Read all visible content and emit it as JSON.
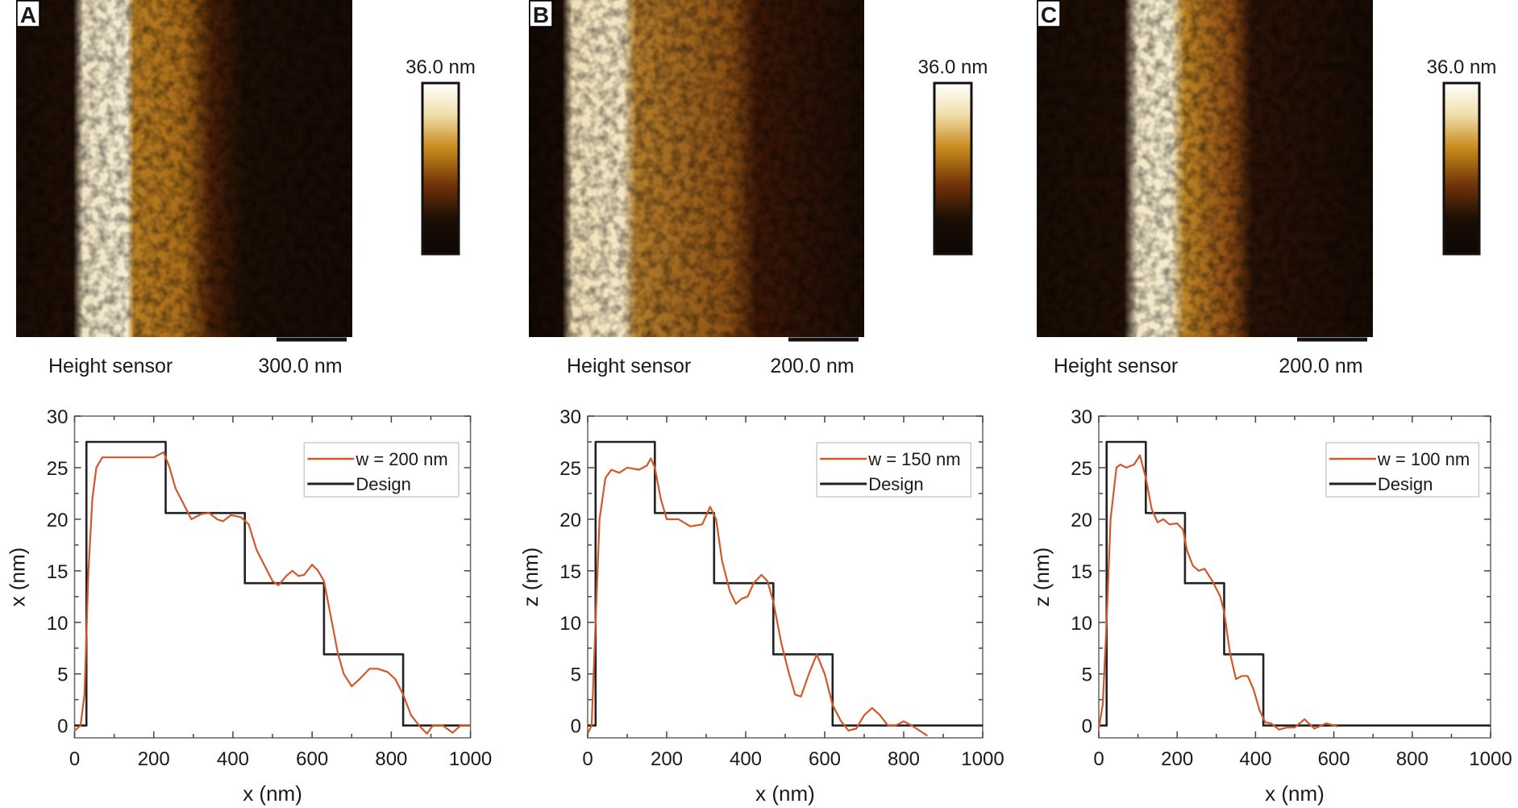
{
  "panels": [
    {
      "letter": "A",
      "image_label": "Height sensor",
      "scale_bar_label": "300.0 nm",
      "colorbar_max_label": "36.0 nm"
    },
    {
      "letter": "B",
      "image_label": "Height sensor",
      "scale_bar_label": "200.0 nm",
      "colorbar_max_label": "36.0 nm"
    },
    {
      "letter": "C",
      "image_label": "Height sensor",
      "scale_bar_label": "200.0 nm",
      "colorbar_max_label": "36.0 nm"
    }
  ],
  "colors": {
    "measured": "#d2582a",
    "design": "#222222",
    "afm_bright": "#fbf3df",
    "afm_gold": "#c98a1c",
    "afm_dark": "#1a0d05"
  },
  "chart_data": [
    {
      "type": "line",
      "xlabel": "x (nm)",
      "ylabel": "x (nm)",
      "xlim": [
        0,
        1000
      ],
      "ylim": [
        -1.2,
        30
      ],
      "xticks": [
        "0",
        "200",
        "400",
        "600",
        "800",
        "1000"
      ],
      "yticks": [
        "0",
        "5",
        "10",
        "15",
        "20",
        "25",
        "30"
      ],
      "grid": false,
      "legend": "top-right",
      "series": [
        {
          "name": "w = 200 nm",
          "color": "#d2582a",
          "points": [
            [
              0,
              -0.5
            ],
            [
              15,
              0
            ],
            [
              25,
              3
            ],
            [
              35,
              15
            ],
            [
              45,
              22
            ],
            [
              55,
              25
            ],
            [
              70,
              26
            ],
            [
              100,
              26
            ],
            [
              150,
              26
            ],
            [
              200,
              26
            ],
            [
              225,
              26.5
            ],
            [
              240,
              25
            ],
            [
              255,
              23
            ],
            [
              275,
              21.5
            ],
            [
              295,
              20
            ],
            [
              320,
              20.5
            ],
            [
              340,
              20.6
            ],
            [
              360,
              20
            ],
            [
              375,
              19.8
            ],
            [
              395,
              20.4
            ],
            [
              420,
              20.2
            ],
            [
              440,
              19.5
            ],
            [
              460,
              17
            ],
            [
              480,
              15.5
            ],
            [
              500,
              14
            ],
            [
              515,
              13.6
            ],
            [
              535,
              14.5
            ],
            [
              550,
              15
            ],
            [
              565,
              14.5
            ],
            [
              580,
              14.6
            ],
            [
              600,
              15.6
            ],
            [
              615,
              15
            ],
            [
              630,
              14
            ],
            [
              645,
              11
            ],
            [
              665,
              7
            ],
            [
              680,
              5
            ],
            [
              700,
              3.8
            ],
            [
              720,
              4.5
            ],
            [
              745,
              5.5
            ],
            [
              765,
              5.5
            ],
            [
              790,
              5.2
            ],
            [
              810,
              4.5
            ],
            [
              830,
              3
            ],
            [
              850,
              1
            ],
            [
              870,
              0
            ],
            [
              890,
              -0.8
            ],
            [
              905,
              0
            ],
            [
              930,
              0
            ],
            [
              955,
              -0.7
            ],
            [
              975,
              0
            ],
            [
              1000,
              0
            ]
          ]
        },
        {
          "name": "Design",
          "color": "#222222",
          "points": [
            [
              0,
              0
            ],
            [
              30,
              0
            ],
            [
              30,
              27.5
            ],
            [
              230,
              27.5
            ],
            [
              230,
              20.6
            ],
            [
              430,
              20.6
            ],
            [
              430,
              13.8
            ],
            [
              630,
              13.8
            ],
            [
              630,
              6.9
            ],
            [
              830,
              6.9
            ],
            [
              830,
              0
            ],
            [
              1000,
              0
            ]
          ]
        }
      ]
    },
    {
      "type": "line",
      "xlabel": "x (nm)",
      "ylabel": "z (nm)",
      "xlim": [
        0,
        1000
      ],
      "ylim": [
        -1.2,
        30
      ],
      "xticks": [
        "0",
        "200",
        "400",
        "600",
        "800",
        "1000"
      ],
      "yticks": [
        "0",
        "5",
        "10",
        "15",
        "20",
        "25",
        "30"
      ],
      "grid": false,
      "legend": "top-right",
      "series": [
        {
          "name": "w = 150 nm",
          "color": "#d2582a",
          "points": [
            [
              0,
              -0.8
            ],
            [
              10,
              0
            ],
            [
              20,
              10
            ],
            [
              30,
              20
            ],
            [
              45,
              24
            ],
            [
              60,
              24.8
            ],
            [
              80,
              24.5
            ],
            [
              100,
              25
            ],
            [
              130,
              24.8
            ],
            [
              150,
              25.2
            ],
            [
              160,
              25.9
            ],
            [
              170,
              25
            ],
            [
              185,
              22
            ],
            [
              200,
              20
            ],
            [
              230,
              20
            ],
            [
              260,
              19.3
            ],
            [
              290,
              19.5
            ],
            [
              310,
              21.2
            ],
            [
              325,
              20
            ],
            [
              340,
              16
            ],
            [
              360,
              13
            ],
            [
              375,
              11.8
            ],
            [
              390,
              12.3
            ],
            [
              405,
              12.5
            ],
            [
              420,
              13.8
            ],
            [
              440,
              14.6
            ],
            [
              455,
              14
            ],
            [
              470,
              12
            ],
            [
              490,
              8
            ],
            [
              510,
              5
            ],
            [
              525,
              3
            ],
            [
              540,
              2.8
            ],
            [
              560,
              5
            ],
            [
              580,
              6.9
            ],
            [
              600,
              5
            ],
            [
              620,
              2
            ],
            [
              640,
              0.5
            ],
            [
              660,
              -0.5
            ],
            [
              680,
              -0.3
            ],
            [
              700,
              1
            ],
            [
              720,
              1.7
            ],
            [
              740,
              1
            ],
            [
              760,
              0
            ],
            [
              780,
              0
            ],
            [
              800,
              0.4
            ],
            [
              820,
              0
            ],
            [
              840,
              -0.5
            ],
            [
              860,
              -1
            ]
          ]
        },
        {
          "name": "Design",
          "color": "#222222",
          "points": [
            [
              0,
              0
            ],
            [
              20,
              0
            ],
            [
              20,
              27.5
            ],
            [
              170,
              27.5
            ],
            [
              170,
              20.6
            ],
            [
              320,
              20.6
            ],
            [
              320,
              13.8
            ],
            [
              470,
              13.8
            ],
            [
              470,
              6.9
            ],
            [
              620,
              6.9
            ],
            [
              620,
              0
            ],
            [
              1000,
              0
            ]
          ]
        }
      ]
    },
    {
      "type": "line",
      "xlabel": "x (nm)",
      "ylabel": "z (nm)",
      "xlim": [
        0,
        1000
      ],
      "ylim": [
        -1.2,
        30
      ],
      "xticks": [
        "0",
        "200",
        "400",
        "600",
        "800",
        "1000"
      ],
      "yticks": [
        "0",
        "5",
        "10",
        "15",
        "20",
        "25",
        "30"
      ],
      "grid": false,
      "legend": "top-right",
      "series": [
        {
          "name": "w = 100 nm",
          "color": "#d2582a",
          "points": [
            [
              0,
              -0.3
            ],
            [
              10,
              2
            ],
            [
              20,
              10
            ],
            [
              30,
              20
            ],
            [
              45,
              25
            ],
            [
              55,
              25.3
            ],
            [
              70,
              25
            ],
            [
              90,
              25.3
            ],
            [
              105,
              26.2
            ],
            [
              120,
              24
            ],
            [
              135,
              21
            ],
            [
              150,
              19.7
            ],
            [
              165,
              20
            ],
            [
              180,
              19.5
            ],
            [
              200,
              19.6
            ],
            [
              215,
              19
            ],
            [
              225,
              17
            ],
            [
              240,
              15.5
            ],
            [
              255,
              15
            ],
            [
              270,
              15.2
            ],
            [
              290,
              14
            ],
            [
              310,
              12.5
            ],
            [
              320,
              11
            ],
            [
              335,
              7
            ],
            [
              350,
              4.5
            ],
            [
              365,
              4.8
            ],
            [
              380,
              4.8
            ],
            [
              395,
              3.5
            ],
            [
              410,
              1.5
            ],
            [
              425,
              0.3
            ],
            [
              440,
              0.2
            ],
            [
              460,
              -0.4
            ],
            [
              480,
              -0.2
            ],
            [
              500,
              -0.2
            ],
            [
              525,
              0.6
            ],
            [
              550,
              -0.3
            ],
            [
              580,
              0.2
            ],
            [
              610,
              -0.1
            ]
          ]
        },
        {
          "name": "Design",
          "color": "#222222",
          "points": [
            [
              0,
              0
            ],
            [
              20,
              0
            ],
            [
              20,
              27.5
            ],
            [
              120,
              27.5
            ],
            [
              120,
              20.6
            ],
            [
              220,
              20.6
            ],
            [
              220,
              13.8
            ],
            [
              320,
              13.8
            ],
            [
              320,
              6.9
            ],
            [
              420,
              6.9
            ],
            [
              420,
              0
            ],
            [
              1000,
              0
            ]
          ]
        }
      ]
    }
  ]
}
